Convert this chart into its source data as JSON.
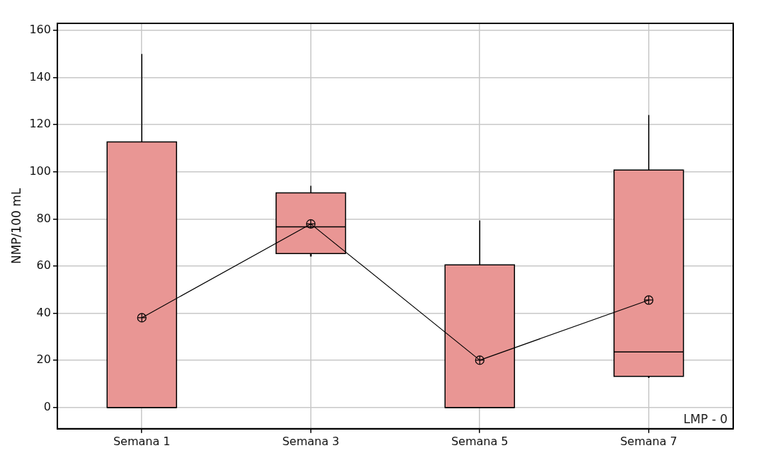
{
  "chart_data": {
    "type": "box",
    "ylabel": "NMP/100 mL",
    "categories": [
      "Semana 1",
      "Semana 3",
      "Semana 5",
      "Semana 7"
    ],
    "boxes": [
      {
        "low": 0,
        "q1": 0,
        "median": 0,
        "q3": 112.7,
        "high": 150,
        "mean": 38.1
      },
      {
        "low": 64.1,
        "q1": 65.3,
        "median": 76.7,
        "q3": 91.1,
        "high": 94.1,
        "mean": 77.9
      },
      {
        "low": 0,
        "q1": 0,
        "median": 0,
        "q3": 60.5,
        "high": 79.4,
        "mean": 20.1
      },
      {
        "low": 12.6,
        "q1": 13.2,
        "median": 23.6,
        "q3": 100.8,
        "high": 124.1,
        "mean": 45.6
      }
    ],
    "color": "#e99694",
    "series": [
      {
        "type": "line",
        "color": "#000000",
        "x": [
          "Semana 1",
          "Semana 3",
          "Semana 5",
          "Semana 7"
        ],
        "values": [
          38.1,
          77.9,
          20.1,
          45.6
        ]
      }
    ],
    "ylim": [
      -9,
      163
    ],
    "yticks": [
      0,
      20,
      40,
      60,
      80,
      100,
      120,
      140,
      160
    ],
    "grid": true,
    "annotations": [
      "LMP - 0"
    ]
  }
}
